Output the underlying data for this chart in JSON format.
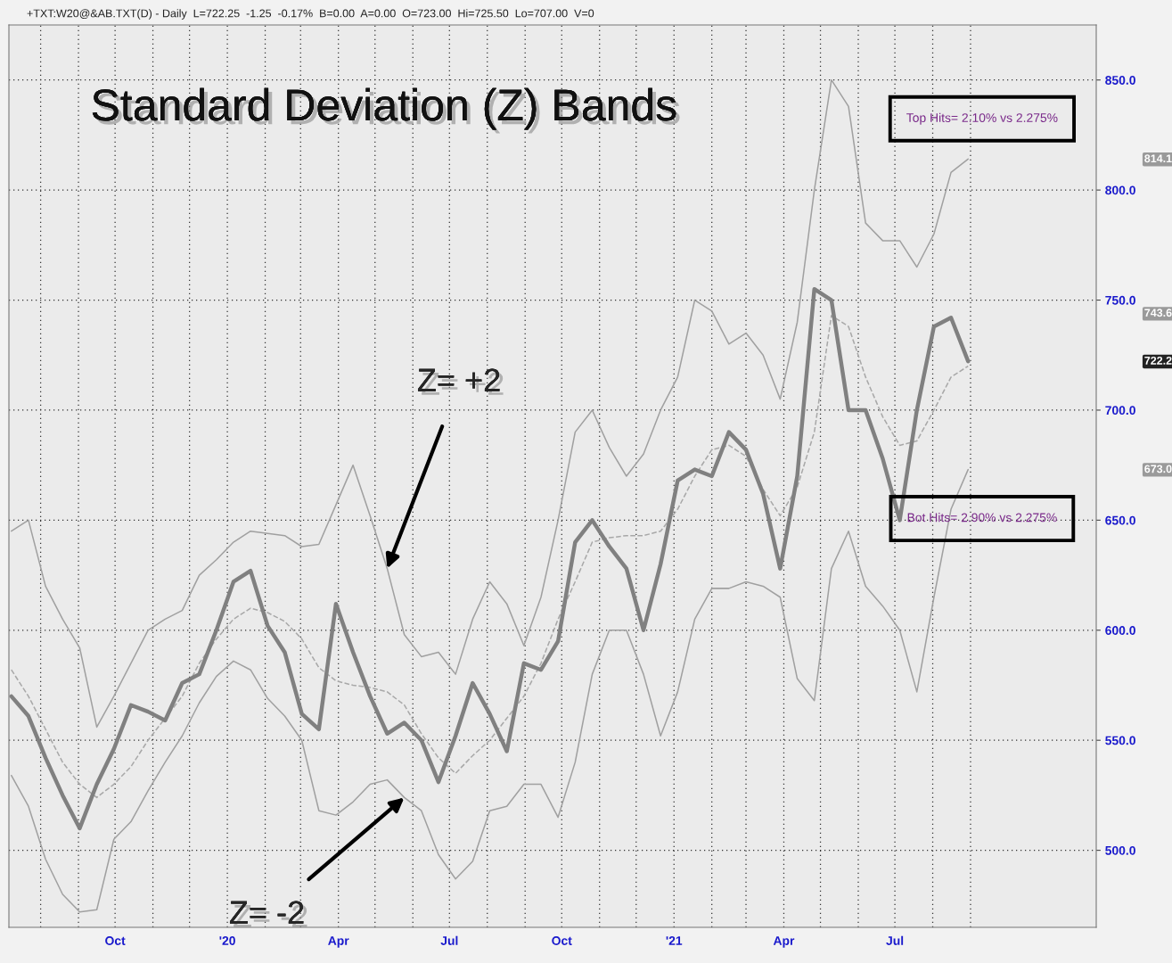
{
  "chart_data": {
    "type": "line",
    "title": "Standard Deviation (Z) Bands",
    "subtitle": "+TXT:W20@&AB.TXT(D) - Daily  L=722.25  -1.25  -0.17%  B=0.00  A=0.00  O=723.00  Hi=725.50  Lo=707.00  V=0",
    "x": [
      "2019-07-08",
      "2019-07-22",
      "2019-08-05",
      "2019-08-19",
      "2019-09-02",
      "2019-09-16",
      "2019-09-30",
      "2019-10-14",
      "2019-10-28",
      "2019-11-11",
      "2019-11-25",
      "2019-12-09",
      "2019-12-23",
      "2020-01-06",
      "2020-01-20",
      "2020-02-03",
      "2020-02-17",
      "2020-03-02",
      "2020-03-16",
      "2020-03-30",
      "2020-04-13",
      "2020-04-27",
      "2020-05-11",
      "2020-05-25",
      "2020-06-08",
      "2020-06-22",
      "2020-07-06",
      "2020-07-20",
      "2020-08-03",
      "2020-08-17",
      "2020-08-31",
      "2020-09-14",
      "2020-09-28",
      "2020-10-12",
      "2020-10-26",
      "2020-11-09",
      "2020-11-23",
      "2020-12-07",
      "2020-12-21",
      "2021-01-04",
      "2021-01-18",
      "2021-02-01",
      "2021-02-15",
      "2021-03-01",
      "2021-03-15",
      "2021-03-29",
      "2021-04-12",
      "2021-04-26",
      "2021-05-10",
      "2021-05-24",
      "2021-06-07",
      "2021-06-21",
      "2021-07-05",
      "2021-07-19",
      "2021-08-02",
      "2021-08-16",
      "2021-08-30"
    ],
    "series": [
      {
        "color": "#808080",
        "values": [
          570,
          561,
          542,
          525,
          510,
          530,
          546,
          566,
          563,
          559,
          576,
          580,
          600,
          622,
          627,
          602,
          590,
          562,
          555,
          612,
          590,
          570,
          553,
          558,
          550,
          531,
          552,
          576,
          562,
          545,
          585,
          582,
          595,
          640,
          650,
          638,
          628,
          600,
          630,
          668,
          673,
          670,
          690,
          682,
          662,
          628,
          670,
          755,
          750,
          700,
          700,
          678,
          650,
          700,
          738,
          742,
          722.2
        ]
      },
      {
        "color": "#a0a0a0",
        "values": [
          645,
          650,
          620,
          605,
          592,
          556,
          570,
          585,
          600,
          605,
          609,
          625,
          632,
          640,
          645,
          644,
          643,
          638,
          639,
          657,
          675,
          652,
          628,
          598,
          588,
          590,
          580,
          605,
          622,
          612,
          593,
          615,
          650,
          690,
          700,
          683,
          670,
          680,
          700,
          715,
          750,
          745,
          730,
          735,
          725,
          705,
          740,
          800,
          850,
          838,
          785,
          777,
          777,
          765,
          780,
          808,
          814.1
        ]
      },
      {
        "color": "#a0a0a0",
        "values": [
          534,
          520,
          496,
          480,
          472,
          473,
          505,
          513,
          527,
          540,
          552,
          567,
          579,
          586,
          582,
          569,
          561,
          550,
          518,
          516,
          522,
          530,
          532,
          524,
          518,
          498,
          487,
          495,
          518,
          520,
          530,
          530,
          515,
          540,
          580,
          600,
          600,
          580,
          552,
          572,
          605,
          619,
          619,
          622,
          620,
          615,
          578,
          568,
          628,
          645,
          620,
          611,
          600,
          572,
          615,
          655,
          673.0
        ]
      },
      {
        "color": "#a8a8a8",
        "line_style": "dashed",
        "values": [
          582,
          570,
          555,
          540,
          530,
          524,
          530,
          538,
          550,
          560,
          570,
          585,
          596,
          605,
          610,
          608,
          604,
          596,
          583,
          577,
          575,
          574,
          572,
          566,
          553,
          542,
          535,
          543,
          550,
          560,
          570,
          585,
          605,
          622,
          640,
          642,
          643,
          643,
          645,
          655,
          670,
          682,
          684,
          679,
          664,
          652,
          665,
          690,
          743,
          738,
          715,
          697,
          684,
          686,
          700,
          715,
          720
        ]
      }
    ],
    "xlim": [
      "2019-07-06",
      "2021-12-13"
    ],
    "xticks": [
      {
        "value": "2019-08-01",
        "label": null
      },
      {
        "value": "2019-09-01",
        "label": null
      },
      {
        "value": "2019-10-01",
        "label": "Oct"
      },
      {
        "value": "2019-11-01",
        "label": null
      },
      {
        "value": "2019-12-01",
        "label": null
      },
      {
        "value": "2020-01-01",
        "label": "'20"
      },
      {
        "value": "2020-02-01",
        "label": null
      },
      {
        "value": "2020-03-01",
        "label": null
      },
      {
        "value": "2020-04-01",
        "label": "Apr"
      },
      {
        "value": "2020-05-01",
        "label": null
      },
      {
        "value": "2020-06-01",
        "label": null
      },
      {
        "value": "2020-07-01",
        "label": "Jul"
      },
      {
        "value": "2020-08-01",
        "label": null
      },
      {
        "value": "2020-09-01",
        "label": null
      },
      {
        "value": "2020-10-01",
        "label": "Oct"
      },
      {
        "value": "2020-11-01",
        "label": null
      },
      {
        "value": "2020-12-01",
        "label": null
      },
      {
        "value": "2021-01-01",
        "label": "'21"
      },
      {
        "value": "2021-02-01",
        "label": null
      },
      {
        "value": "2021-03-01",
        "label": null
      },
      {
        "value": "2021-04-01",
        "label": "Apr"
      },
      {
        "value": "2021-05-01",
        "label": null
      },
      {
        "value": "2021-06-01",
        "label": null
      },
      {
        "value": "2021-07-01",
        "label": "Jul"
      },
      {
        "value": "2021-08-01",
        "label": null
      },
      {
        "value": "2021-09-01",
        "label": null
      }
    ],
    "ylim": [
      465,
      875
    ],
    "yticks": [
      {
        "value": 500,
        "label": "500.0"
      },
      {
        "value": 550,
        "label": "550.0"
      },
      {
        "value": 600,
        "label": "600.0"
      },
      {
        "value": 650,
        "label": "650.0"
      },
      {
        "value": 700,
        "label": "700.0"
      },
      {
        "value": 750,
        "label": "750.0"
      },
      {
        "value": 800,
        "label": "800.0"
      },
      {
        "value": 850,
        "label": "850.0"
      }
    ],
    "grid": true,
    "annotations": [
      {
        "text": "Z= +2",
        "x": "2020-05-11",
        "y": 628
      },
      {
        "text": "Z= -2",
        "x": "2020-05-25",
        "y": 524
      },
      "Top Hits= 2.10% vs 2.275%",
      "Bot Hits= 2.90% vs 2.275%",
      "814.1",
      "743.6",
      "722.2",
      "673.0"
    ]
  }
}
